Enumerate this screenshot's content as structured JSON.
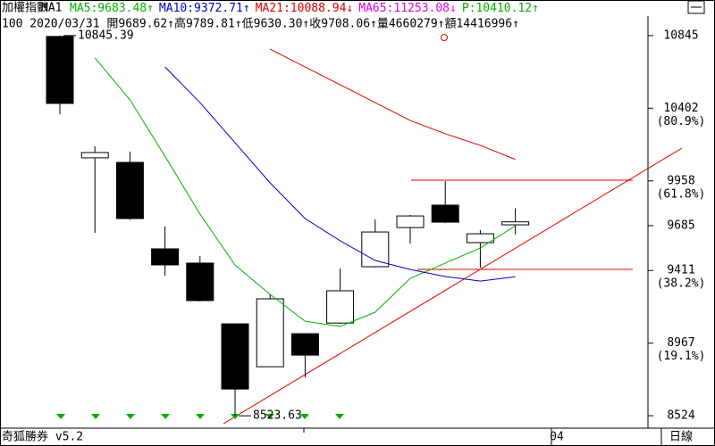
{
  "chart_data": {
    "type": "candlestick",
    "title": "加權指數",
    "indicator_set": "MA1",
    "series": [
      {
        "name": "MA5:9683.48↑",
        "color": "#00b000",
        "values": [
          null,
          10709,
          10453,
          10109,
          9755,
          9444,
          9265,
          9101,
          9069,
          9156,
          9363,
          9456,
          9548,
          9683.48
        ]
      },
      {
        "name": "MA10:9372.71↑",
        "color": "#0000c8",
        "values": [
          null,
          null,
          null,
          10654,
          10436,
          10191,
          9946,
          9728,
          9592,
          9472,
          9417,
          9374,
          9346,
          9372.71
        ]
      },
      {
        "name": "MA21:10088.94↓",
        "color": "#e00000",
        "values": [
          null,
          null,
          null,
          null,
          null,
          null,
          10763,
          10654,
          10545,
          10436,
          10327,
          10246,
          10175,
          10088.94
        ]
      }
    ],
    "other_indicators": [
      {
        "name": "MA65:11253.08↓",
        "color": "#e000e0"
      },
      {
        "name": "P:10410.12↑",
        "color": "#00b000"
      }
    ],
    "quote": "100 2020/03/31 開9689.62↑高9789.81↑低9630.30↑收9708.06↑量4660279↑額14416996↑",
    "categories": [
      null,
      null,
      null,
      null,
      null,
      null,
      null,
      null,
      null,
      null,
      null,
      null,
      null,
      null
    ],
    "open": [
      10840,
      10099,
      10071,
      9543,
      9456,
      9085,
      8823,
      9025,
      9090,
      9434,
      9673,
      9810,
      9581,
      9689.62
    ],
    "high": [
      10845.39,
      10169,
      10137,
      9679,
      9499,
      9085,
      9265,
      9025,
      9423,
      9723,
      9750,
      9957,
      9657,
      9789.81
    ],
    "low": [
      10365,
      9641,
      9720,
      9379,
      9222,
      8523.63,
      8823,
      8758,
      9085,
      9430,
      9575,
      9700,
      9428,
      9630.3
    ],
    "close": [
      10431,
      10131,
      9728,
      9445,
      9227,
      8687,
      9238,
      8894,
      9287,
      9646,
      9744,
      9706,
      9635,
      9708.06
    ],
    "up_color": "#ffffff",
    "down_color": "#000000",
    "high_label": "10845.39",
    "low_label": "8523.63",
    "ylim": [
      8448,
      10872
    ],
    "yticks": [
      8524,
      8967,
      9411,
      9685,
      9958,
      10402,
      10845
    ],
    "fib_labels": [
      {
        "value": 8967,
        "label": "(19.1%)"
      },
      {
        "value": 9411,
        "label": "(38.2%)"
      },
      {
        "value": 9958,
        "label": "(61.8%)"
      },
      {
        "value": 10402,
        "label": "(80.9%)"
      }
    ],
    "x_label": "04",
    "footer_left": "奇狐勝券 v5.2",
    "period": "日線"
  }
}
